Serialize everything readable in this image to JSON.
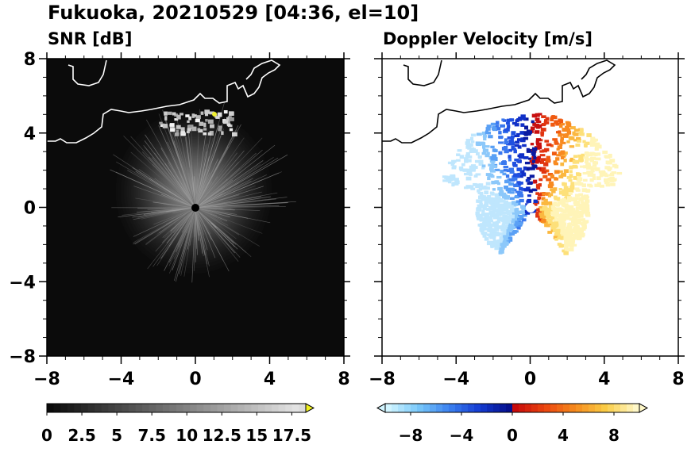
{
  "title": "Fukuoka, 20210529 [04:36, el=10]",
  "panels": [
    {
      "id": "snr",
      "title": "SNR [dB]"
    },
    {
      "id": "doppler",
      "title": "Doppler Velocity [m/s]"
    }
  ],
  "colors": {
    "snr_background": "#0a0a0a",
    "coastline": "#ffffff",
    "doppler_negative": "#1030c0",
    "doppler_positive": "#e04010"
  },
  "chart_data": [
    {
      "type": "heatmap",
      "title": "SNR [dB]",
      "x_ticks": [
        "−8",
        "−4",
        "0",
        "4",
        "8"
      ],
      "y_ticks": [
        "8",
        "4",
        "0",
        "−4",
        "−8"
      ],
      "xlim": [
        -8,
        8
      ],
      "ylim": [
        -8,
        8
      ],
      "colorbar": {
        "range": [
          0,
          18.5
        ],
        "tick_values": [
          0,
          2.5,
          5,
          7.5,
          10,
          12.5,
          15,
          17.5
        ],
        "tick_labels": [
          "0",
          "2.5",
          "5",
          "7.5",
          "10",
          "12.5",
          "15",
          "17.5"
        ],
        "extend": "max"
      }
    },
    {
      "type": "heatmap",
      "title": "Doppler Velocity [m/s]",
      "x_ticks": [
        "−8",
        "−4",
        "0",
        "4",
        "8"
      ],
      "y_ticks": [
        "8",
        "4",
        "0",
        "−4",
        "−8"
      ],
      "xlim": [
        -8,
        8
      ],
      "ylim": [
        -8,
        8
      ],
      "colorbar": {
        "range": [
          -10,
          10
        ],
        "tick_values": [
          -8,
          -4,
          0,
          4,
          8
        ],
        "tick_labels": [
          "−8",
          "−4",
          "0",
          "4",
          "8"
        ],
        "extend": "both"
      }
    }
  ]
}
